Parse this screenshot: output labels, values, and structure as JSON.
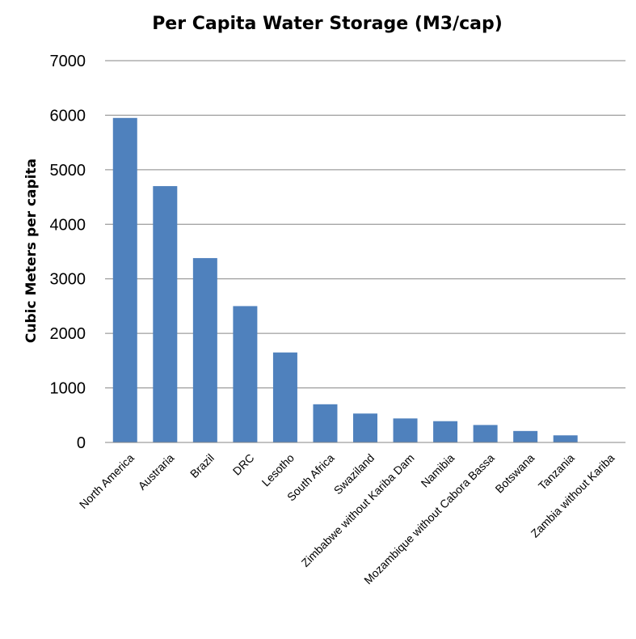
{
  "chart_data": {
    "type": "bar",
    "title": "Per Capita Water Storage (M3/cap)",
    "xlabel": "",
    "ylabel": "Cubic Meters per capita",
    "ylim": [
      0,
      7000
    ],
    "yticks": [
      0,
      1000,
      2000,
      3000,
      4000,
      5000,
      6000,
      7000
    ],
    "grid": "horizontal",
    "legend": "none",
    "bar_color": "#4f81bd",
    "categories": [
      "North America",
      "Austraria",
      "Brazil",
      "DRC",
      "Lesotho",
      "South Africa",
      "Swaziland",
      "Zimbabwe without Kariba Dam",
      "Namibia",
      "Mozambique without Cabora Bassa",
      "Botswana",
      "Tanzania",
      "Zambia without Kariba"
    ],
    "values": [
      5950,
      4700,
      3380,
      2500,
      1650,
      700,
      530,
      440,
      390,
      320,
      210,
      130,
      0
    ]
  }
}
